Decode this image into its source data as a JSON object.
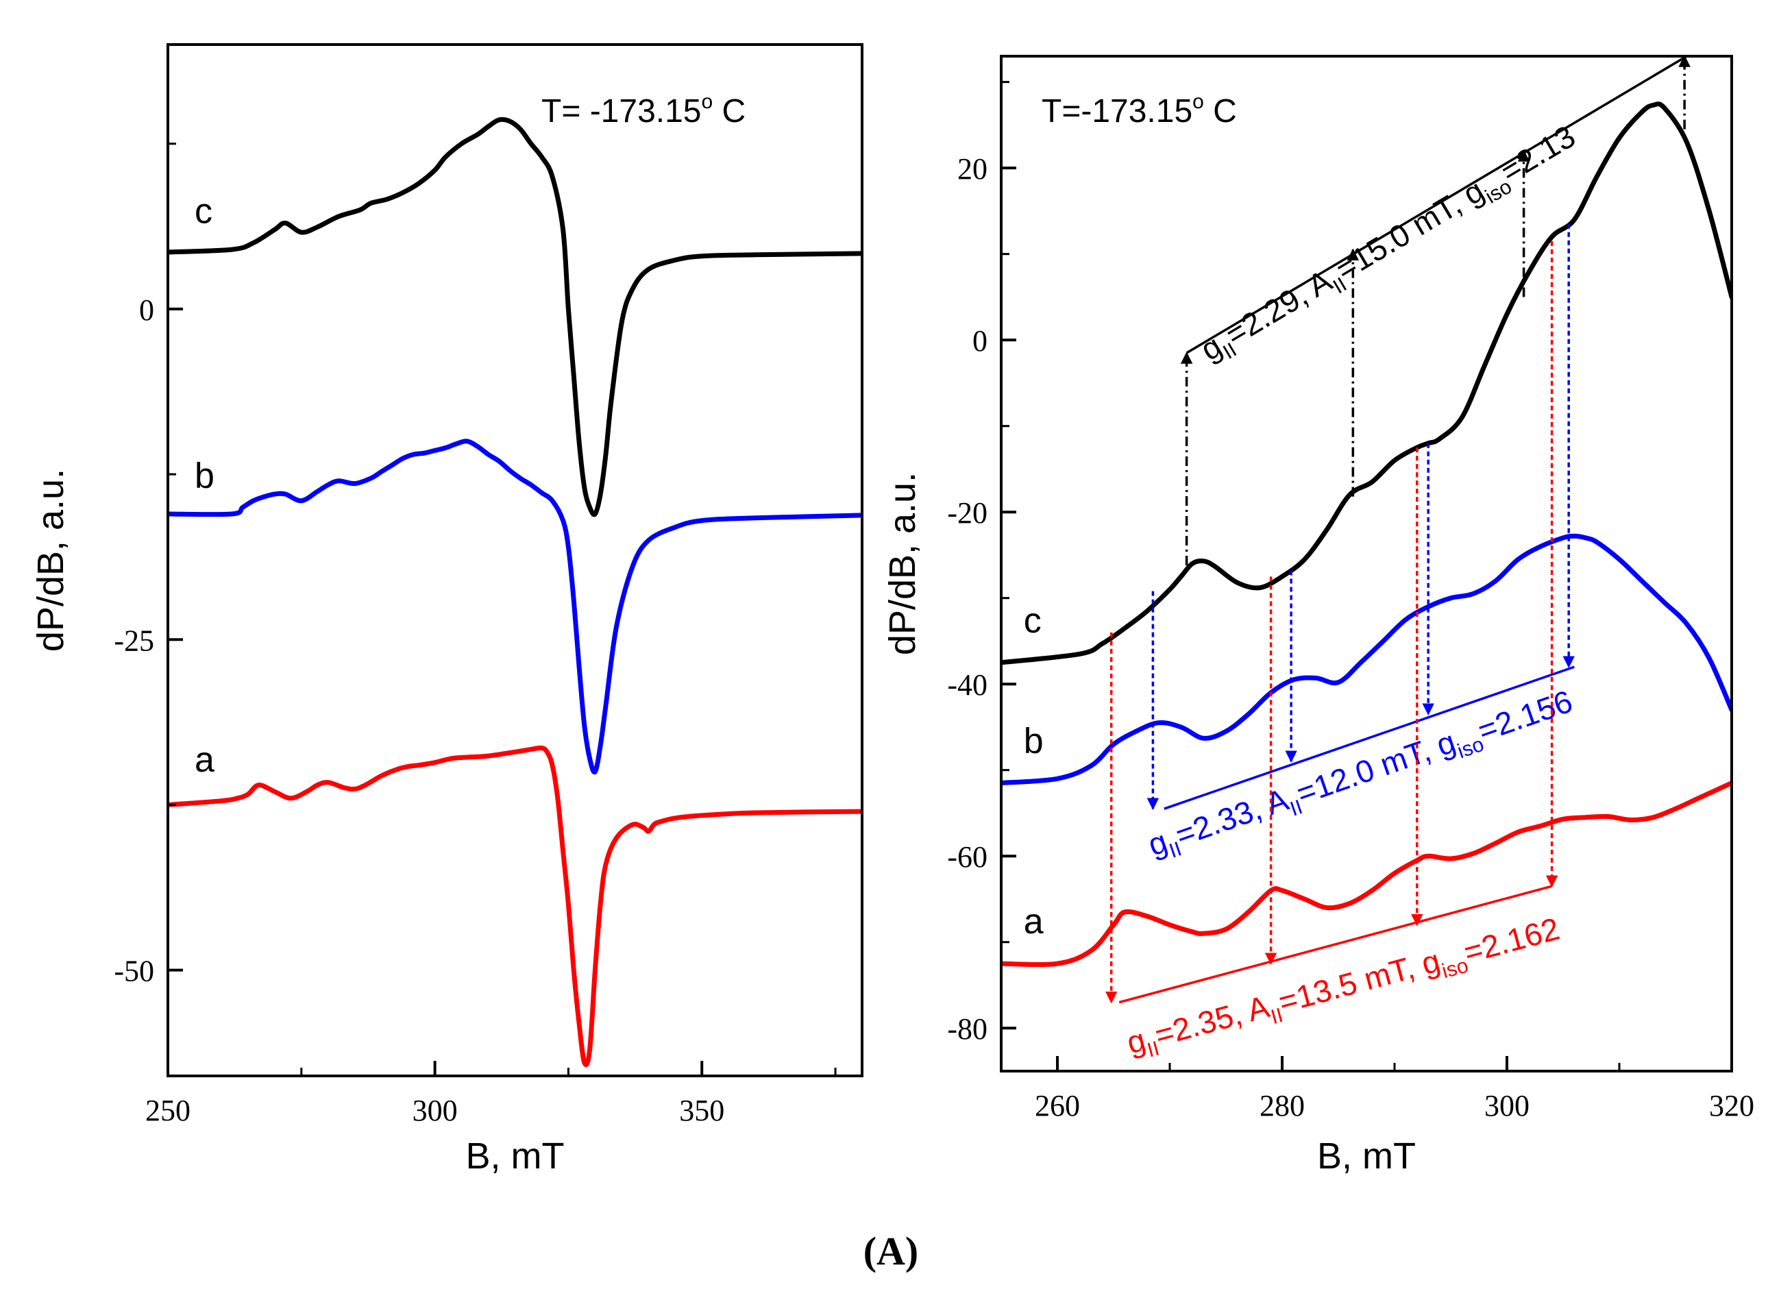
{
  "figure_label": "(A)",
  "chart_data": [
    {
      "type": "line",
      "xlabel": "B, mT",
      "ylabel": "dP/dB, a.u.",
      "temperature_label": "T= -173.15° C",
      "xlim": [
        250,
        380
      ],
      "ylim": [
        -58,
        20
      ],
      "xticks": [
        250,
        300,
        350
      ],
      "yticks": [
        0,
        -25,
        -50
      ],
      "series": [
        {
          "name": "c",
          "color": "#000000",
          "x": [
            250,
            262,
            266,
            270,
            272,
            275,
            278,
            282,
            286,
            288,
            291,
            294,
            297,
            300,
            302,
            305,
            308,
            310,
            312,
            314,
            316,
            318,
            320,
            322,
            324,
            325,
            326,
            327,
            328,
            329,
            330,
            331,
            332,
            333,
            335,
            337,
            340,
            345,
            350,
            360,
            380
          ],
          "y": [
            4.3,
            4.5,
            5,
            6,
            6.5,
            5.8,
            6.2,
            7,
            7.5,
            8,
            8.3,
            8.8,
            9.5,
            10.5,
            11.5,
            12.5,
            13.2,
            13.8,
            14.3,
            14.2,
            13.6,
            12.5,
            11.5,
            10,
            6,
            0,
            -5,
            -10,
            -13.5,
            -15,
            -15.5,
            -14,
            -11,
            -7,
            -1,
            1.5,
            3,
            3.7,
            4,
            4.1,
            4.2
          ]
        },
        {
          "name": "b",
          "color": "#0000ff",
          "x": [
            250,
            262,
            264,
            266,
            268,
            270,
            272,
            275,
            278,
            280,
            282,
            285,
            288,
            290,
            292,
            294,
            296,
            298,
            300,
            302,
            304,
            306,
            308,
            310,
            312,
            314,
            316,
            318,
            320,
            322,
            324,
            325,
            326,
            327,
            328,
            329,
            330,
            331,
            332,
            334,
            337,
            340,
            345,
            350,
            360,
            380
          ],
          "y": [
            -15.5,
            -15.5,
            -15,
            -14.5,
            -14.2,
            -14,
            -14,
            -14.5,
            -13.8,
            -13.3,
            -13,
            -13.2,
            -12.8,
            -12.3,
            -11.8,
            -11.3,
            -11,
            -10.9,
            -10.7,
            -10.5,
            -10.2,
            -10,
            -10.4,
            -11,
            -11.5,
            -12.2,
            -12.8,
            -13.3,
            -13.9,
            -14.5,
            -16,
            -18,
            -22,
            -27,
            -31.5,
            -34,
            -35,
            -33,
            -30,
            -24,
            -19.5,
            -17.5,
            -16.5,
            -16,
            -15.8,
            -15.6
          ]
        },
        {
          "name": "a",
          "color": "#ff0000",
          "x": [
            250,
            260,
            263,
            265,
            267,
            270,
            273,
            276,
            278,
            280,
            283,
            285,
            287,
            290,
            293,
            295,
            297,
            300,
            303,
            306,
            310,
            315,
            318,
            320,
            321,
            322,
            323,
            324,
            325,
            326,
            327,
            328,
            329,
            330,
            331,
            332,
            334,
            337,
            339,
            340,
            341,
            342,
            345,
            350,
            360,
            380
          ],
          "y": [
            -37.5,
            -37.2,
            -37,
            -36.7,
            -36,
            -36.5,
            -37,
            -36.5,
            -36,
            -35.8,
            -36.2,
            -36.3,
            -36,
            -35.3,
            -34.8,
            -34.6,
            -34.5,
            -34.3,
            -34,
            -33.9,
            -33.8,
            -33.5,
            -33.3,
            -33.2,
            -33.5,
            -34.5,
            -37,
            -41,
            -45,
            -50,
            -54,
            -57,
            -56,
            -50,
            -45,
            -42,
            -40,
            -39,
            -39.2,
            -39.5,
            -39,
            -38.8,
            -38.5,
            -38.3,
            -38.1,
            -38
          ]
        }
      ],
      "curve_labels": [
        {
          "text": "c",
          "x": 255,
          "y": 6.5
        },
        {
          "text": "b",
          "x": 255,
          "y": -13.5
        },
        {
          "text": "a",
          "x": 255,
          "y": -35
        }
      ]
    },
    {
      "type": "line",
      "xlabel": "B, mT",
      "ylabel": "dP/dB, a.u.",
      "temperature_label": "T=-173.15° C",
      "xlim": [
        255,
        320
      ],
      "ylim": [
        -85,
        33
      ],
      "xticks": [
        260,
        280,
        300,
        320
      ],
      "yticks": [
        20,
        0,
        -20,
        -40,
        -60,
        -80
      ],
      "series": [
        {
          "name": "c",
          "color": "#000000",
          "x": [
            255,
            262,
            264,
            266,
            268,
            270,
            271,
            272,
            273,
            274,
            276,
            278,
            280,
            282,
            284,
            286,
            288,
            290,
            292,
            293,
            294,
            296,
            298,
            300,
            302,
            304,
            306,
            308,
            310,
            312,
            313,
            314,
            316,
            318,
            320
          ],
          "y": [
            -37.5,
            -36.5,
            -35.3,
            -33.5,
            -31.5,
            -29,
            -27.5,
            -26,
            -25.7,
            -26.3,
            -28.2,
            -28.8,
            -27.5,
            -25.5,
            -22,
            -18,
            -16.5,
            -14,
            -12.5,
            -12,
            -11.5,
            -9,
            -3,
            3,
            8,
            12,
            14,
            19,
            23.5,
            26.5,
            27.3,
            27,
            23,
            15,
            5
          ]
        },
        {
          "name": "b",
          "color": "#0000ff",
          "x": [
            255,
            260,
            263,
            265,
            267,
            269,
            271,
            273,
            275,
            277,
            279,
            281,
            283,
            285,
            287,
            289,
            291,
            293,
            295,
            297,
            299,
            301,
            303,
            305,
            306,
            307,
            308,
            310,
            312,
            314,
            316,
            318,
            320
          ],
          "y": [
            -51.5,
            -51,
            -49.5,
            -47,
            -45.5,
            -44.5,
            -45,
            -46.3,
            -45.5,
            -43.5,
            -41,
            -39.5,
            -39.3,
            -39.8,
            -37.5,
            -35,
            -32.5,
            -31,
            -30,
            -29.5,
            -28,
            -25.5,
            -24,
            -23,
            -22.8,
            -23,
            -23.5,
            -25.5,
            -28,
            -30.5,
            -33,
            -37,
            -43
          ]
        },
        {
          "name": "a",
          "color": "#ff0000",
          "x": [
            255,
            260,
            263,
            265,
            266,
            268,
            270,
            272,
            273,
            275,
            277,
            279,
            280,
            282,
            284,
            286,
            288,
            290,
            292,
            293,
            295,
            297,
            299,
            301,
            303,
            305,
            307,
            309,
            311,
            313,
            315,
            317,
            320
          ],
          "y": [
            -72.5,
            -72.5,
            -71,
            -68,
            -66.5,
            -67,
            -68,
            -68.8,
            -69,
            -68.5,
            -66.5,
            -64,
            -64,
            -65,
            -66,
            -65.5,
            -64,
            -62,
            -60.5,
            -60,
            -60.3,
            -59.7,
            -58.5,
            -57.2,
            -56.5,
            -55.7,
            -55.5,
            -55.4,
            -55.8,
            -55.5,
            -54.5,
            -53.3,
            -51.5
          ]
        }
      ],
      "curve_labels": [
        {
          "text": "c",
          "x": 257,
          "y": -34
        },
        {
          "text": "b",
          "x": 257,
          "y": -48
        },
        {
          "text": "a",
          "x": 257,
          "y": -69
        }
      ],
      "annotations": [
        {
          "color": "#000000",
          "text": "g_II=2.29, A_II=15.0 mT, g_iso=2.13",
          "g_label": "g",
          "g_sub": "II",
          "g_value": "=2.29, ",
          "A_label": "A",
          "A_sub": "II",
          "A_value": "=15.0 mT, ",
          "iso_label": "g",
          "iso_sub": "iso",
          "iso_value": "=2.13",
          "line": [
            [
              271.5,
              -1.5
            ],
            [
              316,
              33
            ]
          ],
          "text_anchor": [
            273.5,
            -2.5
          ],
          "arrows": [
            [
              271.5,
              -26.2,
              271.5,
              -1.5
            ],
            [
              286.3,
              -18.2,
              286.3,
              10.5
            ],
            [
              301.5,
              5,
              301.5,
              22
            ],
            [
              315.8,
              24.5,
              315.8,
              33
            ]
          ],
          "arrow_dir": "up"
        },
        {
          "color": "#0000ff",
          "text": "g_II=2.33, A_II=12.0 mT, g_iso=2.156",
          "g_label": "g",
          "g_sub": "II",
          "g_value": "=2.33, ",
          "A_label": "A",
          "A_sub": "II",
          "A_value": "=12.0 mT, ",
          "iso_label": "g",
          "iso_sub": "iso",
          "iso_value": "=2.156",
          "line": [
            [
              269.5,
              -54.5
            ],
            [
              306,
              -38
            ]
          ],
          "text_anchor": [
            268.5,
            -60
          ],
          "arrows": [
            [
              268.5,
              -29.2,
              268.5,
              -54.5
            ],
            [
              280.8,
              -26.8,
              280.8,
              -49
            ],
            [
              293,
              -12,
              293,
              -43.5
            ],
            [
              305.5,
              13.5,
              305.5,
              -38
            ]
          ],
          "arrow_dir": "down"
        },
        {
          "color": "#ff0000",
          "text": "g_II=2.35, A_II=13.5 mT, g_iso=2.162",
          "g_label": "g",
          "g_sub": "II",
          "g_value": "=2.35, ",
          "A_label": "A",
          "A_sub": "II",
          "A_value": "=13.5 mT, ",
          "iso_label": "g",
          "iso_sub": "iso",
          "iso_value": "=2.162",
          "line": [
            [
              265.5,
              -77
            ],
            [
              304,
              -63.5
            ]
          ],
          "text_anchor": [
            266.5,
            -83
          ],
          "arrows": [
            [
              264.8,
              -34,
              264.8,
              -77
            ],
            [
              279,
              -27.5,
              279,
              -72.5
            ],
            [
              292,
              -12.5,
              292,
              -68
            ],
            [
              304,
              11.5,
              304,
              -63.5
            ]
          ],
          "arrow_dir": "down"
        }
      ]
    }
  ]
}
